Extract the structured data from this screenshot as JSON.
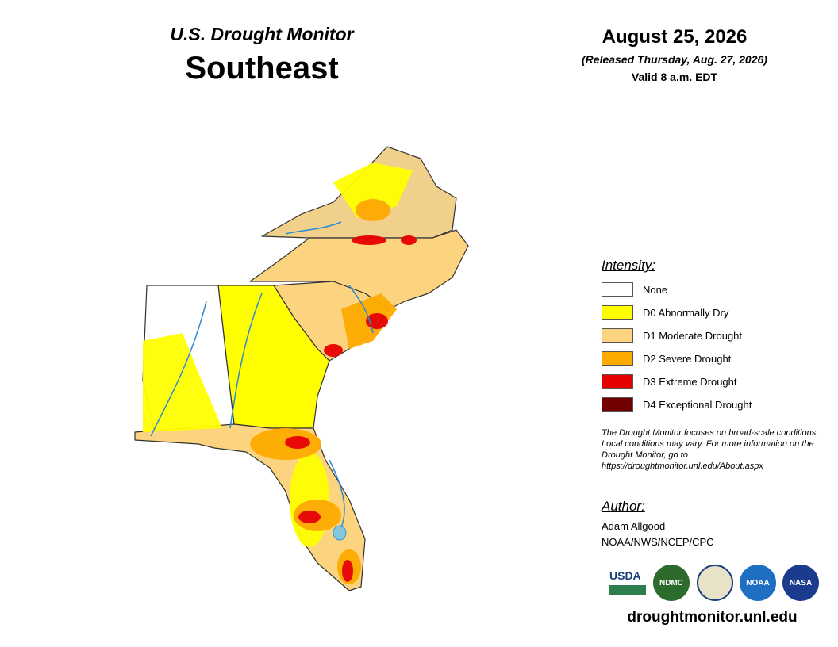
{
  "header": {
    "title": "U.S. Drought Monitor",
    "region": "Southeast",
    "date": "August 25, 2026",
    "released": "(Released Thursday, Aug. 27, 2026)",
    "valid": "Valid 8 a.m. EDT"
  },
  "legend": {
    "title": "Intensity:",
    "items": [
      {
        "label": "None",
        "color": "#ffffff"
      },
      {
        "label": "D0 Abnormally Dry",
        "color": "#ffff00"
      },
      {
        "label": "D1 Moderate Drought",
        "color": "#fcd37f"
      },
      {
        "label": "D2 Severe Drought",
        "color": "#ffaa00"
      },
      {
        "label": "D3 Extreme Drought",
        "color": "#e60000"
      },
      {
        "label": "D4 Exceptional Drought",
        "color": "#730000"
      }
    ]
  },
  "note": "The Drought Monitor focuses on broad-scale conditions. Local conditions may vary. For more information on the Drought Monitor, go to https://droughtmonitor.unl.edu/About.aspx",
  "author": {
    "title": "Author:",
    "name": "Adam Allgood",
    "org": "NOAA/NWS/NCEP/CPC"
  },
  "logos": [
    "USDA",
    "NDMC",
    "NOAA",
    "NASA"
  ],
  "url": "droughtmonitor.unl.edu"
}
